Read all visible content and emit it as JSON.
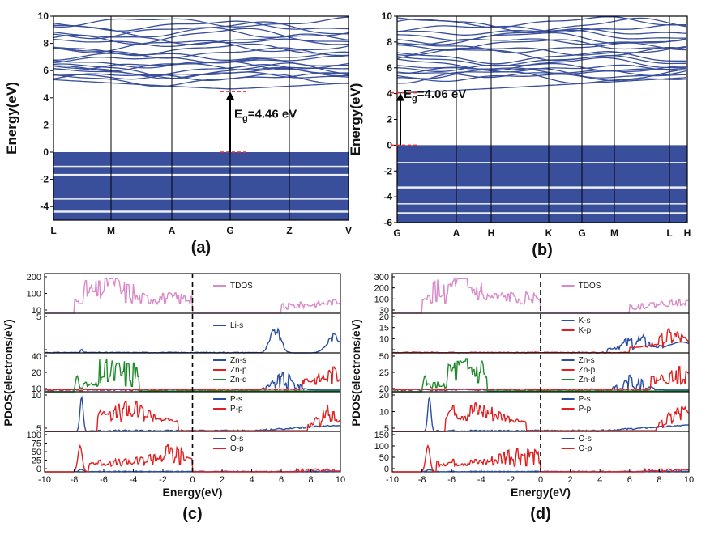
{
  "chart_data": [
    {
      "id": "a",
      "type": "line",
      "panel_label": "(a)",
      "ylabel": "Energy(eV)",
      "ylim": [
        -5,
        10
      ],
      "yticks": [
        -4,
        -2,
        0,
        2,
        4,
        6,
        8,
        10
      ],
      "kpoints": [
        "L",
        "M",
        "A",
        "G",
        "Z",
        "V"
      ],
      "valence_band": [
        -5,
        0
      ],
      "gap_band_edges": [
        0,
        4.46
      ],
      "annotation": {
        "prefix": "E",
        "sub": "g",
        "value": "=4.46 eV"
      },
      "band_color": "#3a4f9c"
    },
    {
      "id": "b",
      "type": "line",
      "panel_label": "(b)",
      "ylabel": "Energy(eV)",
      "ylim": [
        -6,
        10
      ],
      "yticks": [
        -6,
        -4,
        -2,
        0,
        2,
        4,
        6,
        8,
        10
      ],
      "kpoints": [
        "G",
        "A",
        "H",
        "K",
        "G",
        "M",
        "L",
        "H"
      ],
      "valence_band": [
        -6,
        0
      ],
      "gap_band_edges": [
        0,
        4.06
      ],
      "annotation": {
        "prefix": "E",
        "sub": "g",
        "value": "=4.06 eV"
      },
      "band_color": "#3a4f9c"
    },
    {
      "id": "c",
      "type": "line",
      "panel_label": "(c)",
      "xlabel": "Energy(eV)",
      "ylabel": "PDOS(electrons/eV)",
      "xlim": [
        -10,
        10
      ],
      "xticks": [
        -10,
        -8,
        -6,
        -4,
        -2,
        0,
        2,
        4,
        6,
        8,
        10
      ],
      "fermi_level": 0,
      "subplots": [
        {
          "yticks": [
            "200",
            "100",
            "10"
          ],
          "series": [
            {
              "name": "TDOS",
              "color": "#d98ac8"
            }
          ]
        },
        {
          "yticks": [
            "5",
            ""
          ],
          "series": [
            {
              "name": "Li-s",
              "color": "#2b4fa0"
            }
          ]
        },
        {
          "yticks": [
            "40",
            "20",
            "10"
          ],
          "series": [
            {
              "name": "Zn-s",
              "color": "#2b4fa0"
            },
            {
              "name": "Zn-p",
              "color": "#e02020"
            },
            {
              "name": "Zn-d",
              "color": "#1f8a2a"
            }
          ]
        },
        {
          "yticks": [
            "10",
            "5"
          ],
          "series": [
            {
              "name": "P-s",
              "color": "#2b4fa0"
            },
            {
              "name": "P-p",
              "color": "#e02020"
            }
          ]
        },
        {
          "yticks": [
            "100",
            "75",
            "50",
            "25",
            "0"
          ],
          "series": [
            {
              "name": "O-s",
              "color": "#2b4fa0"
            },
            {
              "name": "O-p",
              "color": "#e02020"
            }
          ]
        }
      ]
    },
    {
      "id": "d",
      "type": "line",
      "panel_label": "(d)",
      "xlabel": "Energy(eV)",
      "ylabel": "PDOS(electrons/eV)",
      "xlim": [
        -10,
        10
      ],
      "xticks": [
        -10,
        -8,
        -6,
        -4,
        -2,
        0,
        2,
        4,
        6,
        8,
        10
      ],
      "fermi_level": 0,
      "subplots": [
        {
          "yticks": [
            "300",
            "200",
            "100",
            "30"
          ],
          "series": [
            {
              "name": "TDOS",
              "color": "#d98ac8"
            }
          ]
        },
        {
          "yticks": [
            "20",
            "15",
            "10",
            ""
          ],
          "series": [
            {
              "name": "K-s",
              "color": "#2b4fa0"
            },
            {
              "name": "K-p",
              "color": "#e02020"
            }
          ]
        },
        {
          "yticks": [
            "50",
            "25",
            "20"
          ],
          "series": [
            {
              "name": "Zn-s",
              "color": "#2b4fa0"
            },
            {
              "name": "Zn-p",
              "color": "#e02020"
            },
            {
              "name": "Zn-d",
              "color": "#1f8a2a"
            }
          ]
        },
        {
          "yticks": [
            "20",
            "10",
            "5"
          ],
          "series": [
            {
              "name": "P-s",
              "color": "#2b4fa0"
            },
            {
              "name": "P-p",
              "color": "#e02020"
            }
          ]
        },
        {
          "yticks": [
            "150",
            "100",
            "50",
            "0"
          ],
          "series": [
            {
              "name": "O-s",
              "color": "#2b4fa0"
            },
            {
              "name": "O-p",
              "color": "#e02020"
            }
          ]
        }
      ]
    }
  ]
}
